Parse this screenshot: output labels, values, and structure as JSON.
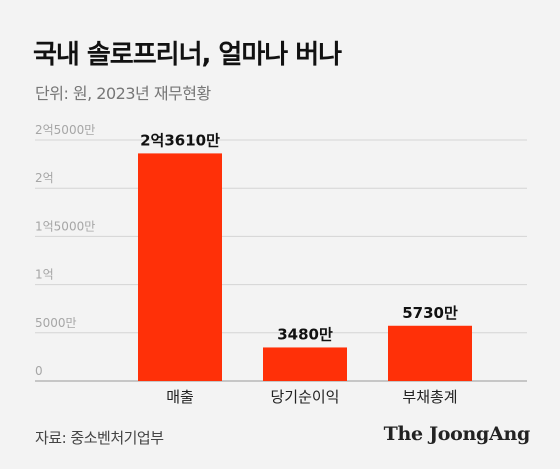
{
  "header": {
    "title": "국내 솔로프리너, 얼마나 버나",
    "subtitle": "단위: 원, 2023년 재무현황"
  },
  "footer": {
    "source": "자료: 중소벤처기업부",
    "brand": "The JoongAng"
  },
  "colors": {
    "bar": "#ff3008",
    "gridline": "#d4d4d4",
    "axis_label": "#a6a6a6",
    "background": "#f3f3f3"
  },
  "chart_data": {
    "type": "bar",
    "title": "국내 솔로프리너, 얼마나 버나",
    "subtitle": "단위: 원, 2023년 재무현황",
    "categories": [
      "매출",
      "당기순이익",
      "부채총계"
    ],
    "values": [
      236100000,
      34800000,
      57300000
    ],
    "data_labels": [
      "2억3610만",
      "3480만",
      "5730만"
    ],
    "ylim": [
      0,
      250000000
    ],
    "yticks": [
      0,
      50000000,
      100000000,
      150000000,
      200000000,
      250000000
    ],
    "ytick_labels": [
      "0",
      "5000만",
      "1억",
      "1억5000만",
      "2억",
      "2억5000만"
    ],
    "grid": true,
    "legend": "none"
  }
}
